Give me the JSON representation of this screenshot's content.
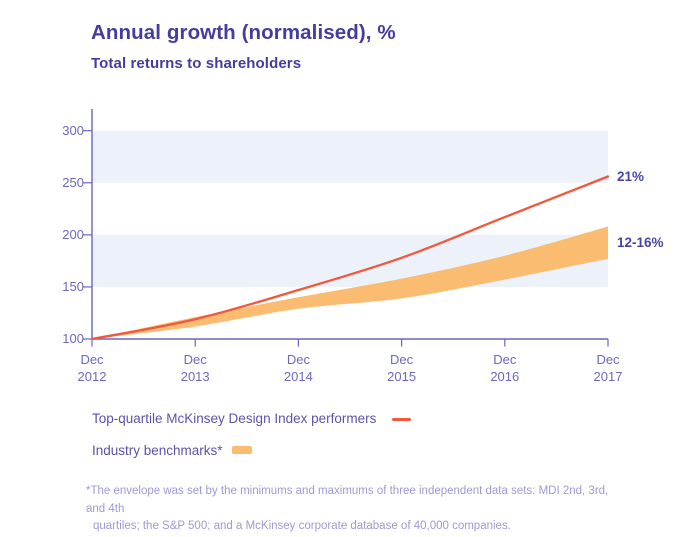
{
  "chart_data": {
    "type": "line",
    "title": "Annual growth (normalised), %",
    "subtitle": "Total returns to shareholders",
    "x_categories": [
      "Dec 2012",
      "Dec 2013",
      "Dec 2014",
      "Dec 2015",
      "Dec 2016",
      "Dec 2017"
    ],
    "x_tick_lines": [
      [
        "Dec",
        "2012"
      ],
      [
        "Dec",
        "2013"
      ],
      [
        "Dec",
        "2014"
      ],
      [
        "Dec",
        "2015"
      ],
      [
        "Dec",
        "2016"
      ],
      [
        "Dec",
        "2017"
      ]
    ],
    "y_ticks": [
      300,
      250,
      200,
      150,
      100
    ],
    "ylim": [
      100,
      320
    ],
    "grid": "alternating horizontal bands between 250-300 and 150-200",
    "grid_bands_y": [
      [
        250,
        300
      ],
      [
        150,
        200
      ]
    ],
    "legend_position": "bottom-left",
    "series": [
      {
        "name": "Top-quartile McKinsey Design Index performers",
        "type": "line",
        "x": [
          "Dec 2012",
          "Dec 2013",
          "Dec 2014",
          "Dec 2015",
          "Dec 2016",
          "Dec 2017"
        ],
        "values": [
          100,
          119,
          147,
          178,
          217,
          256
        ],
        "end_label": "21%",
        "color": "#f1583c"
      },
      {
        "name": "Industry benchmarks*",
        "type": "band",
        "x": [
          "Dec 2012",
          "Dec 2013",
          "Dec 2014",
          "Dec 2015",
          "Dec 2016",
          "Dec 2017"
        ],
        "upper": [
          100,
          121,
          140,
          158,
          180,
          208
        ],
        "lower": [
          100,
          112,
          129,
          139,
          157,
          177
        ],
        "end_label": "12-16%",
        "color": "#f9bc70"
      }
    ]
  },
  "footnote": {
    "line1": "*The envelope was set by the minimums and maximums of three independent data sets: MDI 2nd, 3rd, and 4th",
    "line2": "quartiles; the S&P 500; and a McKinsey corporate database of 40,000 companies."
  },
  "colors": {
    "title": "#443d9e",
    "subtitle": "#443d9e",
    "axis": "#6966b8",
    "tick_label": "#6c69be",
    "legend_text": "#5a54ab",
    "annotation": "#4745a4",
    "footnote": "#9e99d6",
    "line": "#f1583c",
    "band_fill": "#f9bc70",
    "plot_band": "#edf2fa"
  }
}
